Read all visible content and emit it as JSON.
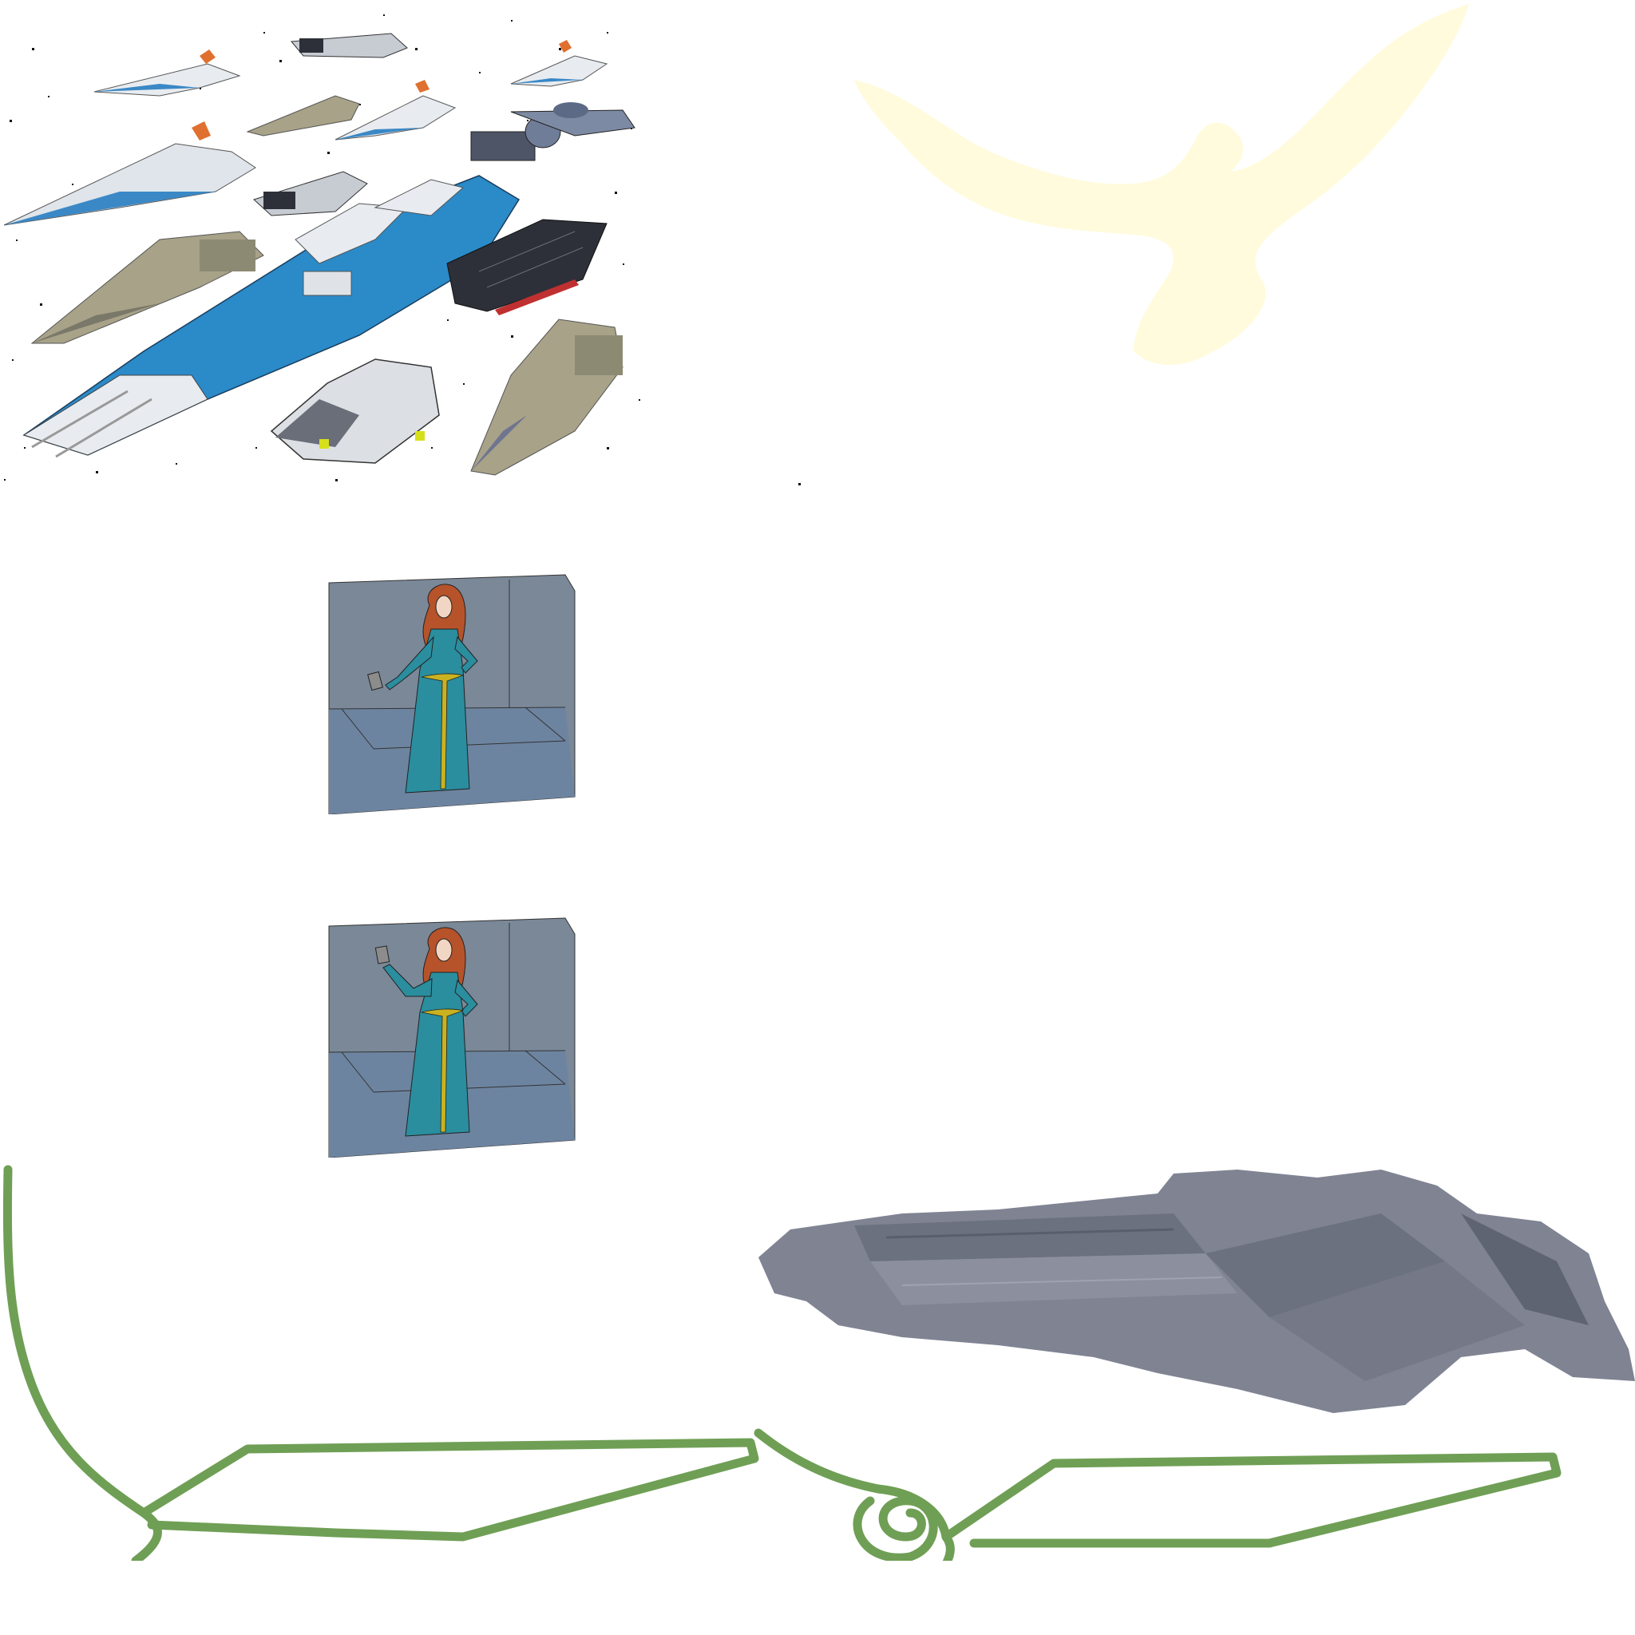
{
  "sprites": {
    "fleet": {
      "icon": "spaceship-fleet-icon",
      "count": 15
    },
    "eagle": {
      "icon": "eagle-silhouette-icon",
      "color": "#fffbdc"
    },
    "portraits": [
      {
        "icon": "woman-portrait-icon",
        "pose": "holding-card-low"
      },
      {
        "icon": "woman-portrait-icon",
        "pose": "holding-card-raised"
      }
    ],
    "capital_ship": {
      "icon": "capital-ship-icon",
      "color": "#7f8392"
    },
    "vine": {
      "icon": "green-vine-outline-icon",
      "color": "#6f9f55"
    }
  },
  "palette": {
    "hull_blue": "#2b8ac8",
    "hull_white": "#e8ecf0",
    "hull_tan": "#a7a288",
    "hull_dark": "#2d3038",
    "room_wall": "#7a8898",
    "room_floor": "#6d84a0",
    "dress": "#2a8e9e",
    "hair": "#b6532a",
    "belt": "#c9b220"
  }
}
